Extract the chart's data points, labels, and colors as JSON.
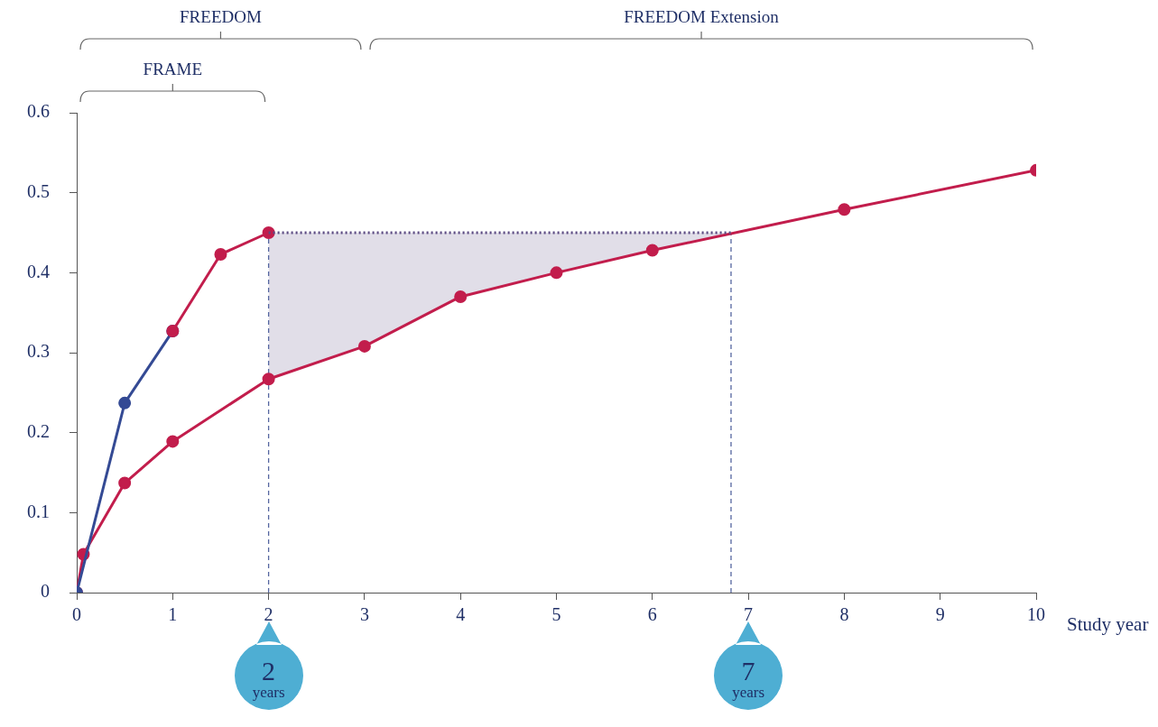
{
  "chart_data": {
    "type": "line",
    "xlabel": "Study year",
    "xlim": [
      0,
      10
    ],
    "xticks": [
      0,
      1,
      2,
      3,
      4,
      5,
      6,
      7,
      8,
      9,
      10
    ],
    "ylim": [
      0,
      0.6
    ],
    "yticks": [
      0,
      0.1,
      0.2,
      0.3,
      0.4,
      0.5,
      0.6
    ],
    "grid": false,
    "legend": false,
    "marker": "circle",
    "line_style": "solid",
    "series": [
      {
        "color": "#c21d4c",
        "x": [
          0,
          0.07,
          0.5,
          1,
          2,
          3,
          4,
          5,
          6,
          8,
          10
        ],
        "values": [
          0,
          0.048,
          0.137,
          0.189,
          0.267,
          0.308,
          0.37,
          0.4,
          0.428,
          0.479,
          0.528
        ]
      },
      {
        "color": "#344a94",
        "x": [
          0,
          0.5,
          1
        ],
        "values": [
          0,
          0.237,
          0.327
        ]
      },
      {
        "color": "#c21d4c",
        "x": [
          1,
          1.5,
          2
        ],
        "values": [
          0.327,
          0.423,
          0.45
        ]
      },
      {
        "color": "#5b4a82",
        "marker": "none",
        "line_style": "dotted",
        "x": [
          2,
          3,
          4,
          5,
          6,
          6.82
        ],
        "values": [
          0.45,
          0.45,
          0.45,
          0.45,
          0.45,
          0.45
        ],
        "lower": [
          0.267,
          0.308,
          0.37,
          0.4,
          0.428,
          0.45
        ],
        "upper": [
          0.45,
          0.45,
          0.45,
          0.45,
          0.45,
          0.45
        ]
      }
    ],
    "ref_lines": [
      {
        "axis": "x",
        "value": 2,
        "color": "#5566a0",
        "line_style": "dashed"
      },
      {
        "axis": "x",
        "value": 6.82,
        "color": "#5566a0",
        "line_style": "dashed"
      }
    ],
    "annotations": [
      "FREEDOM",
      "FREEDOM Extension",
      "FRAME",
      "2 years",
      "7 years"
    ]
  }
}
